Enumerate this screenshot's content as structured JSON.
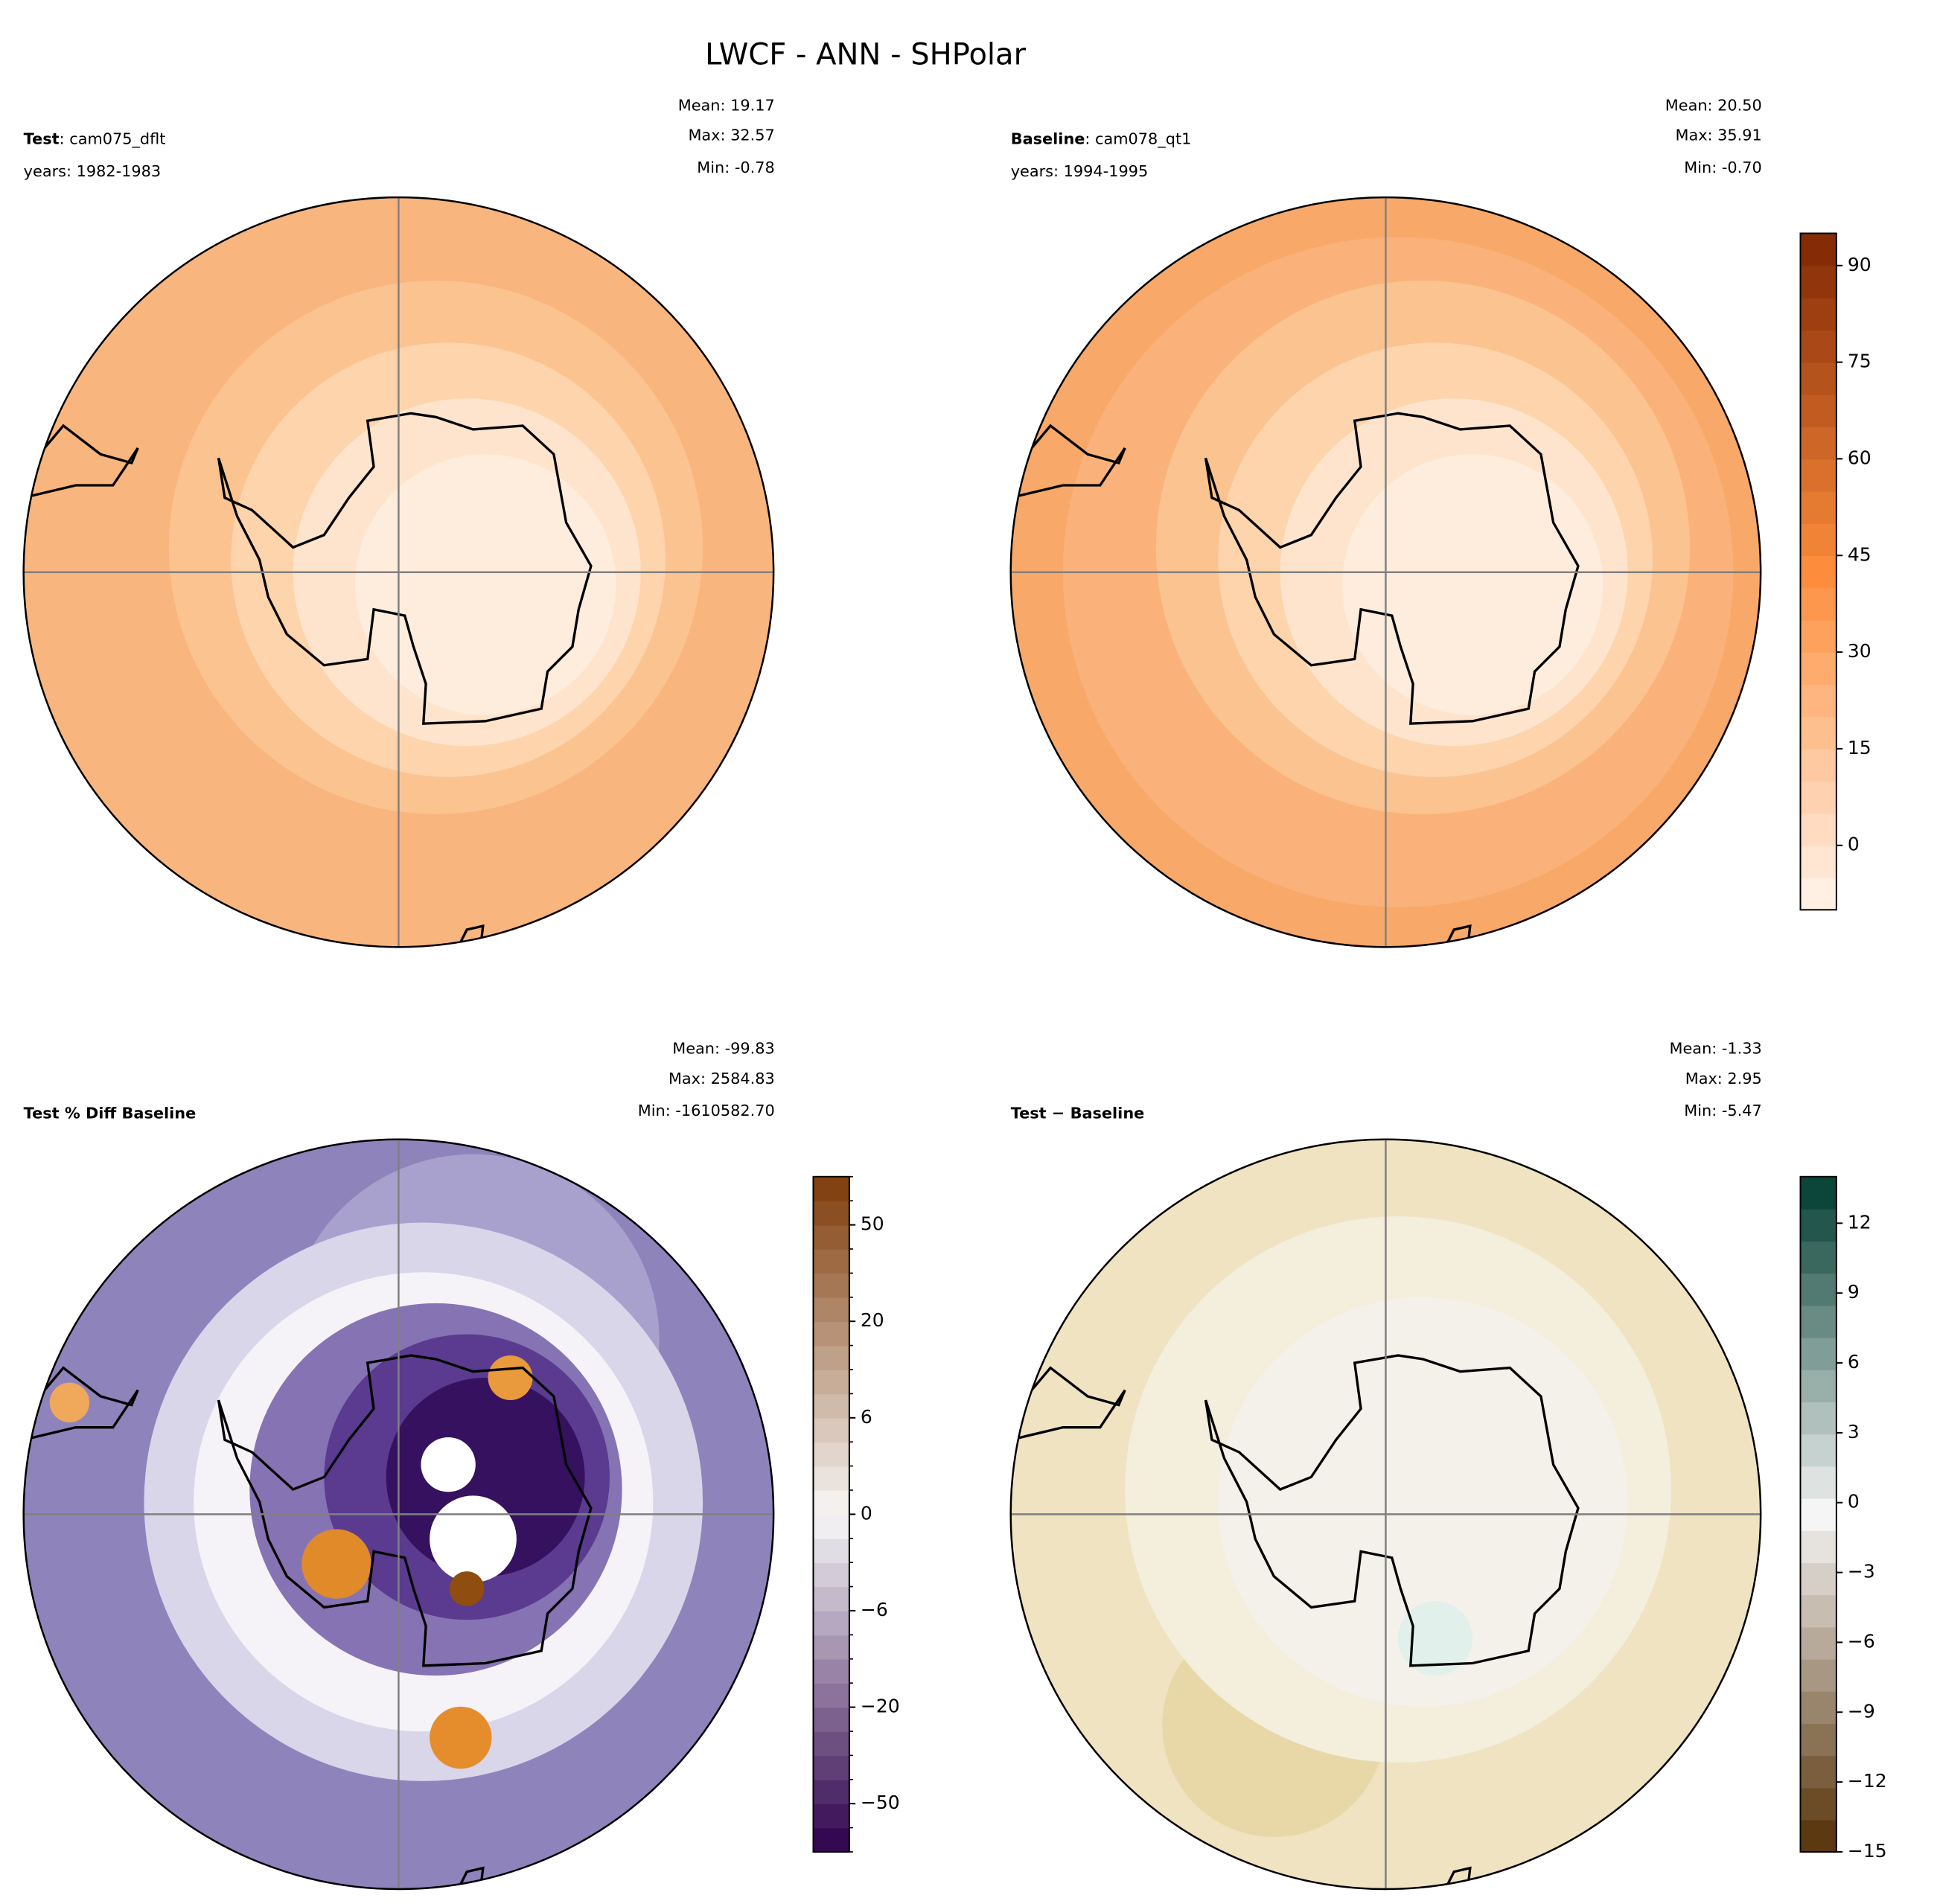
{
  "chart_data": {
    "type": "polar-map",
    "title": "LWCF - ANN - SHPolar",
    "panels": [
      {
        "label": "Test",
        "case": ": cam075_dflt",
        "years": "years: 1982-1983",
        "stats": [
          "Mean: 19.17",
          "Max: 32.57",
          "Min: -0.78"
        ]
      },
      {
        "label": "Baseline",
        "case": ": cam078_qt1",
        "years": "years: 1994-1995",
        "stats": [
          "Mean: 20.50",
          "Max: 35.91",
          "Min: -0.70"
        ]
      },
      {
        "label": "Test % Diff Baseline",
        "stats": [
          "Mean: -99.83",
          "Max: 2584.83",
          "Min: -1610582.70"
        ]
      },
      {
        "label": "Test − Baseline",
        "stats": [
          "Mean: -1.33",
          "Max:  2.95",
          "Min: -5.47"
        ]
      }
    ],
    "colorbars": [
      {
        "panel": 1,
        "ylim": [
          -10,
          95
        ],
        "yticks": [
          0,
          15,
          30,
          45,
          60,
          75,
          90
        ],
        "colors": [
          "#fff5eb",
          "#fd8d3c",
          "#7f2704"
        ]
      },
      {
        "panel": 2,
        "ylim": [
          -100,
          100
        ],
        "levels": [
          -100,
          -70,
          -50,
          -40,
          -30,
          -25,
          -20,
          -15,
          -10,
          -8,
          -6,
          -4.5,
          -3,
          -1.5,
          0,
          1.5,
          3,
          4.5,
          6,
          8,
          10,
          15,
          20,
          25,
          30,
          40,
          50,
          70,
          100
        ],
        "yticks": [
          {
            "value": -50,
            "label": "−50"
          },
          {
            "value": -20,
            "label": "−20"
          },
          {
            "value": -6,
            "label": "−6"
          },
          0,
          6,
          20,
          50
        ],
        "colors": [
          "#2d004b",
          "#f7f7f7",
          "#7f3b08"
        ]
      },
      {
        "panel": 3,
        "ylim": [
          -15,
          14
        ],
        "yticks": [
          {
            "value": -15,
            "label": "−15"
          },
          {
            "value": -12,
            "label": "−12"
          },
          {
            "value": -9,
            "label": "−9"
          },
          {
            "value": -6,
            "label": "−6"
          },
          {
            "value": -3,
            "label": "−3"
          },
          0,
          3,
          6,
          9,
          12
        ],
        "colors": [
          "#543005",
          "#f5f5f5",
          "#003c30"
        ]
      }
    ]
  }
}
